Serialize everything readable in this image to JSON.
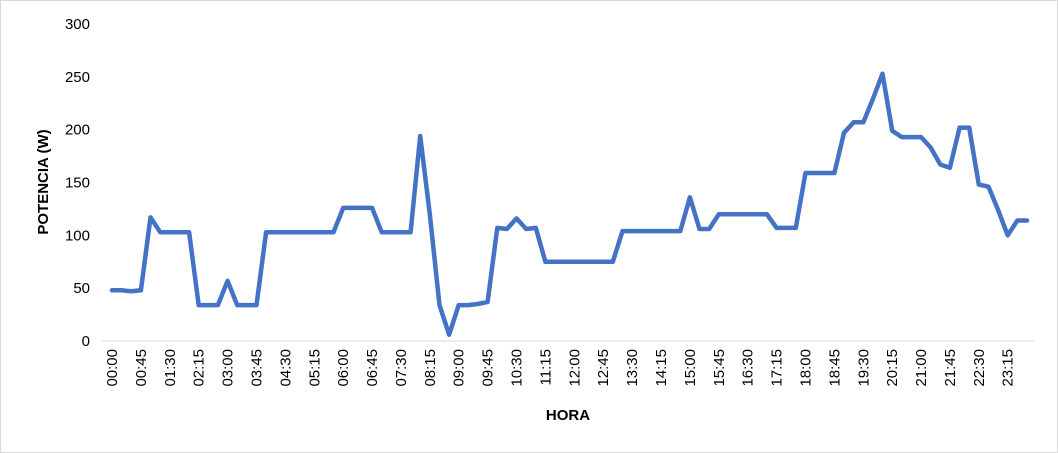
{
  "chart_data": {
    "type": "line",
    "title": "",
    "xlabel": "HORA",
    "ylabel": "POTENCIA (W)",
    "ylim": [
      0,
      300
    ],
    "yticks": [
      0,
      50,
      100,
      150,
      200,
      250,
      300
    ],
    "grid": false,
    "legend": "none",
    "line_color": "#4472C4",
    "x_tick_labels": [
      "00:00",
      "00:45",
      "01:30",
      "02:15",
      "03:00",
      "03:45",
      "04:30",
      "05:15",
      "06:00",
      "06:45",
      "07:30",
      "08:15",
      "09:00",
      "09:45",
      "10:30",
      "11:15",
      "12:00",
      "12:45",
      "13:30",
      "14:15",
      "15:00",
      "15:45",
      "16:30",
      "17:15",
      "18:00",
      "18:45",
      "19:30",
      "20:15",
      "21:00",
      "21:45",
      "22:30",
      "23:15"
    ],
    "series": [
      {
        "x": [
          "00:00",
          "00:15",
          "00:30",
          "00:45",
          "01:00",
          "01:15",
          "01:30",
          "01:45",
          "02:00",
          "02:15",
          "02:30",
          "02:45",
          "03:00",
          "03:15",
          "03:30",
          "03:45",
          "04:00",
          "04:15",
          "04:30",
          "04:45",
          "05:00",
          "05:15",
          "05:30",
          "05:45",
          "06:00",
          "06:15",
          "06:30",
          "06:45",
          "07:00",
          "07:15",
          "07:30",
          "07:45",
          "08:00",
          "08:15",
          "08:30",
          "08:45",
          "09:00",
          "09:15",
          "09:30",
          "09:45",
          "10:00",
          "10:15",
          "10:30",
          "10:45",
          "11:00",
          "11:15",
          "11:30",
          "11:45",
          "12:00",
          "12:15",
          "12:30",
          "12:45",
          "13:00",
          "13:15",
          "13:30",
          "13:45",
          "14:00",
          "14:15",
          "14:30",
          "14:45",
          "15:00",
          "15:15",
          "15:30",
          "15:45",
          "16:00",
          "16:15",
          "16:30",
          "16:45",
          "17:00",
          "17:15",
          "17:30",
          "17:45",
          "18:00",
          "18:15",
          "18:30",
          "18:45",
          "19:00",
          "19:15",
          "19:30",
          "19:45",
          "20:00",
          "20:15",
          "20:30",
          "20:45",
          "21:00",
          "21:15",
          "21:30",
          "21:45",
          "22:00",
          "22:15",
          "22:30",
          "22:45",
          "23:00",
          "23:15",
          "23:30",
          "23:45"
        ],
        "values": [
          48,
          48,
          47,
          48,
          117,
          103,
          103,
          103,
          103,
          34,
          34,
          34,
          57,
          34,
          34,
          34,
          103,
          103,
          103,
          103,
          103,
          103,
          103,
          103,
          126,
          126,
          126,
          126,
          103,
          103,
          103,
          103,
          194,
          120,
          34,
          6,
          34,
          34,
          35,
          37,
          107,
          106,
          116,
          106,
          107,
          75,
          75,
          75,
          75,
          75,
          75,
          75,
          75,
          104,
          104,
          104,
          104,
          104,
          104,
          104,
          136,
          106,
          106,
          120,
          120,
          120,
          120,
          120,
          120,
          107,
          107,
          107,
          159,
          159,
          159,
          159,
          197,
          207,
          207,
          229,
          253,
          199,
          193,
          193,
          193,
          183,
          167,
          164,
          202,
          202,
          148,
          146,
          124,
          100,
          114,
          114
        ]
      }
    ]
  }
}
